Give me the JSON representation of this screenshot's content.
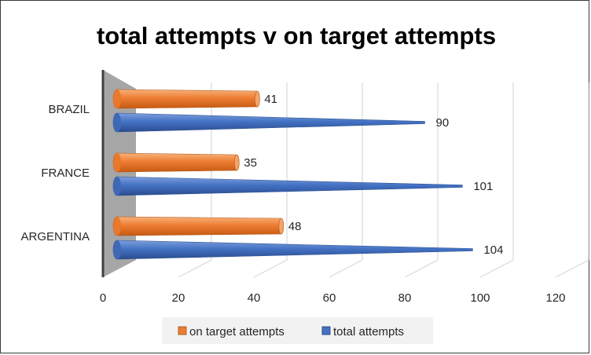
{
  "chart_data": {
    "type": "bar",
    "orientation": "horizontal",
    "style": "3d-cone",
    "title": "total attempts v on target attempts",
    "categories": [
      "BRAZIL",
      "FRANCE",
      "ARGENTINA"
    ],
    "series": [
      {
        "name": "on target attempts",
        "values": [
          41,
          35,
          48
        ],
        "color": "#ED7D31"
      },
      {
        "name": "total attempts",
        "values": [
          90,
          101,
          104
        ],
        "color": "#4472C4"
      }
    ],
    "xlim": [
      0,
      120
    ],
    "xticks": [
      "0",
      "20",
      "40",
      "60",
      "80",
      "100",
      "120"
    ],
    "grid": true,
    "legend_position": "bottom"
  }
}
